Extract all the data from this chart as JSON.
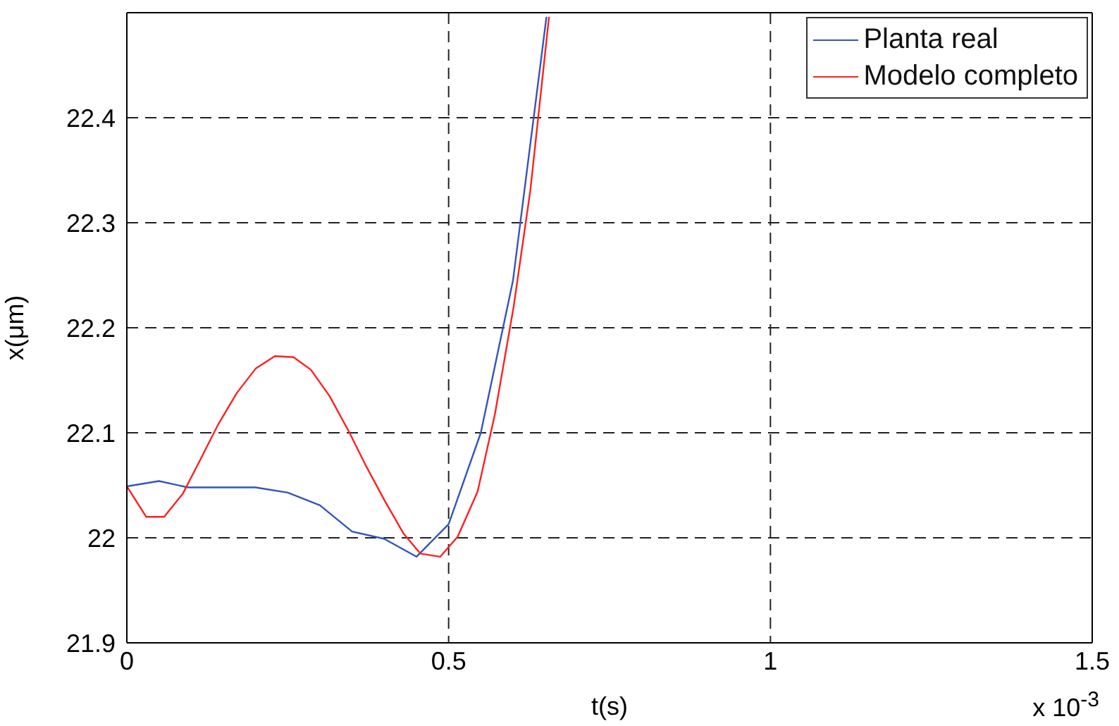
{
  "chart_data": {
    "type": "line",
    "xlabel": "t(s)",
    "ylabel": "x(μm)",
    "annotations": [
      "x 10$^{-3}$"
    ],
    "xlim": [
      0,
      1.5
    ],
    "xticks": [
      0,
      0.5,
      1,
      1.5
    ],
    "ylim": [
      21.9,
      22.5
    ],
    "yticks": [
      21.9,
      22,
      22.1,
      22.2,
      22.3,
      22.4
    ],
    "grid": true,
    "line_style": "solid",
    "legend": "top right",
    "series": [
      {
        "name": "Planta real",
        "color": "#3355bb",
        "x": [
          0,
          0.05,
          0.095,
          0.2,
          0.25,
          0.3,
          0.35,
          0.4,
          0.45,
          0.5,
          0.55,
          0.6,
          0.652
        ],
        "values": [
          22.049,
          22.054,
          22.048,
          22.048,
          22.043,
          22.031,
          22.006,
          21.999,
          21.982,
          22.013,
          22.1,
          22.245,
          22.496
        ]
      },
      {
        "name": "Modelo completo",
        "color": "#ff2020",
        "x": [
          0,
          0.03,
          0.058,
          0.087,
          0.113,
          0.142,
          0.171,
          0.2,
          0.23,
          0.259,
          0.286,
          0.315,
          0.346,
          0.372,
          0.401,
          0.43,
          0.456,
          0.487,
          0.514,
          0.545,
          0.572,
          0.601,
          0.627,
          0.656
        ],
        "values": [
          22.049,
          22.02,
          22.02,
          22.042,
          22.073,
          22.108,
          22.138,
          22.161,
          22.173,
          22.172,
          22.16,
          22.135,
          22.1,
          22.068,
          22.035,
          22.004,
          21.985,
          21.982,
          22.001,
          22.044,
          22.118,
          22.22,
          22.331,
          22.496
        ]
      }
    ]
  }
}
